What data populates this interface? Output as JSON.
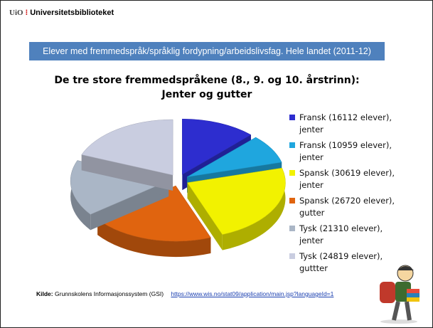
{
  "header": {
    "logo": "UiO",
    "institution": "Universitetsbiblioteket"
  },
  "banner": "Elever med fremmedspråk/språklig fordypning/arbeidslivsfag. Hele landet (2011-12)",
  "chart_data": {
    "type": "pie",
    "title": "De tre store fremmedspråkene (8., 9. og 10. årstrinn):",
    "subtitle": "Jenter og gutter",
    "series": [
      {
        "name": "Fransk (16112 elever), jenter",
        "color": "#2d2dcf",
        "values": [
          16112
        ]
      },
      {
        "name": "Fransk (10959 elever), jenter",
        "color": "#1fa6de",
        "values": [
          10959
        ]
      },
      {
        "name": "Spansk (30619 elever), jenter",
        "color": "#f2f200",
        "values": [
          30619
        ]
      },
      {
        "name": "Spansk (26720 elever), gutter",
        "color": "#e0640f",
        "values": [
          26720
        ]
      },
      {
        "name": "Tysk (21310 elever), jenter",
        "color": "#aab6c6",
        "values": [
          21310
        ]
      },
      {
        "name": "Tysk (24819 elever), guttter",
        "color": "#c9cde0",
        "values": [
          24819
        ]
      }
    ],
    "legend": "right"
  },
  "source": {
    "label": "Kilde:",
    "text": "Grunnskolens Informasjonssystem (GSI)",
    "link": "https://www.wis.no/stat09/application/main.jsp?languageId=1"
  }
}
